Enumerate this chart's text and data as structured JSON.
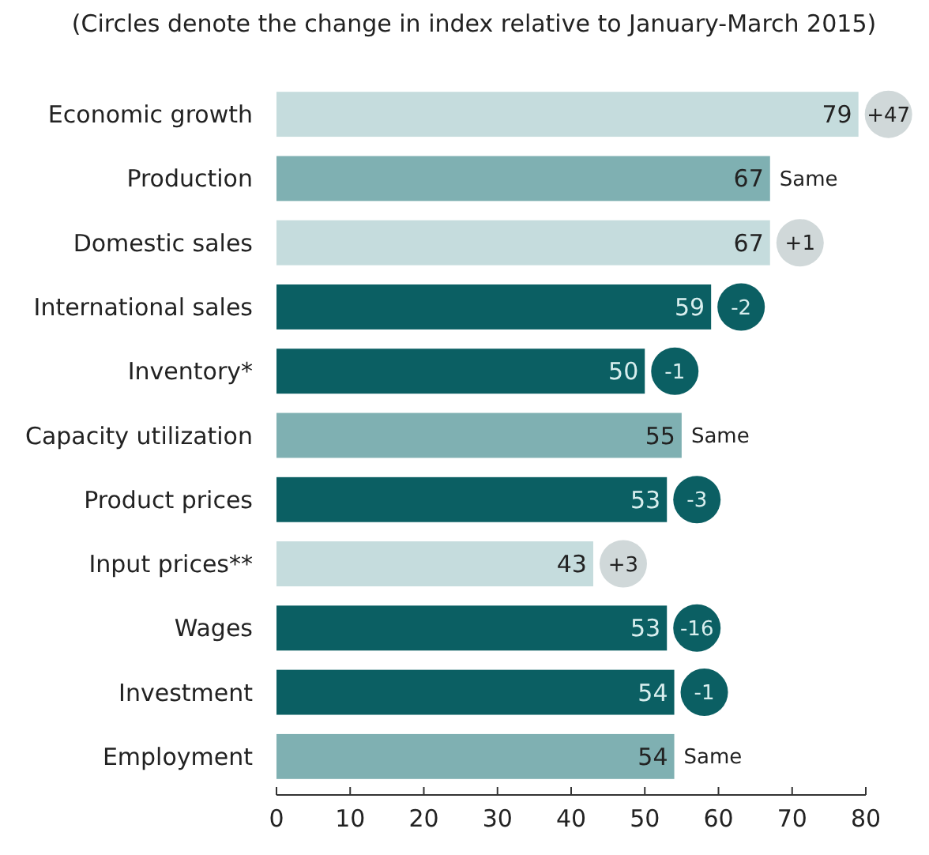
{
  "chart_data": {
    "type": "bar",
    "orientation": "horizontal",
    "title": "(Circles denote the change in index relative to January-March 2015)",
    "categories": [
      "Economic growth",
      "Production",
      "Domestic sales",
      "International sales",
      "Inventory*",
      "Capacity utilization",
      "Product prices",
      "Input prices**",
      "Wages",
      "Investment",
      "Employment"
    ],
    "values": [
      79,
      67,
      67,
      59,
      50,
      55,
      53,
      43,
      53,
      54,
      54
    ],
    "colors": [
      "#c5dcdd",
      "#7fb0b2",
      "#c5dcdd",
      "#0b5f63",
      "#0b5f63",
      "#7fb0b2",
      "#0b5f63",
      "#c5dcdd",
      "#0b5f63",
      "#0b5f63",
      "#7fb0b2"
    ],
    "data_labels": true,
    "xlim": [
      0,
      80
    ],
    "xticks": [
      0,
      10,
      20,
      30,
      40,
      50,
      60,
      70,
      80
    ],
    "grid": false,
    "annotations": [
      {
        "text": "+47",
        "x": 79,
        "y": "Economic growth"
      },
      {
        "text": "Same",
        "x": 67,
        "y": "Production"
      },
      {
        "text": "+1",
        "x": 67,
        "y": "Domestic sales"
      },
      {
        "text": "-2",
        "x": 59,
        "y": "International sales"
      },
      {
        "text": "-1",
        "x": 50,
        "y": "Inventory*"
      },
      {
        "text": "Same",
        "x": 55,
        "y": "Capacity utilization"
      },
      {
        "text": "-3",
        "x": 53,
        "y": "Product prices"
      },
      {
        "text": "+3",
        "x": 43,
        "y": "Input prices**"
      },
      {
        "text": "-16",
        "x": 53,
        "y": "Wages"
      },
      {
        "text": "-1",
        "x": 54,
        "y": "Investment"
      },
      {
        "text": "Same",
        "x": 54,
        "y": "Employment"
      }
    ]
  }
}
